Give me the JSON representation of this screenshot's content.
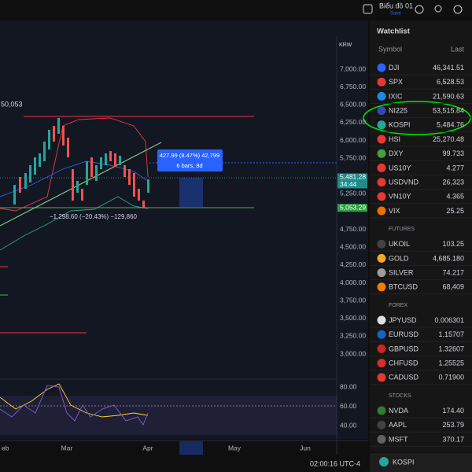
{
  "toolbar": {
    "layout_name": "Biểu đồ 01",
    "save": "Save"
  },
  "chart": {
    "currency": "KRW",
    "price_labels": [
      "7,000.00",
      "6,750.00",
      "6,500.00",
      "6,250.00",
      "6,000.00",
      "5,750.00",
      "5,250.00",
      "4,750.00",
      "4,500.00",
      "4,250.00",
      "4,000.00",
      "3,750.00",
      "3,500.00",
      "3,250.00",
      "3,000.00"
    ],
    "price_tags": [
      {
        "label": "5,481.28",
        "color": "#1e8c8c"
      },
      {
        "label": "5,053.29",
        "color": "#2f9e44"
      }
    ],
    "countdown": "34:44",
    "indicator_labels": [
      "80.00",
      "60.00",
      "40.00"
    ],
    "time_labels": [
      "eb",
      "Mar",
      "Apr",
      "May",
      "Jun"
    ],
    "left_label": "50,053",
    "measure_up": {
      "line1": "427.99 (8.47%) 42,799",
      "line2": "6 bars, 8d"
    },
    "measure_down": "−1,298.60 (−20.43%) −129,860",
    "clock": "02:00:16 UTC-4"
  },
  "watchlist": {
    "title": "Watchlist",
    "col_symbol": "Symbol",
    "col_last": "Last",
    "rows": [
      {
        "symbol": "DJI",
        "last": "46,341.51",
        "color": "#2962ff"
      },
      {
        "symbol": "SPX",
        "last": "6,528.53",
        "color": "#e53935"
      },
      {
        "symbol": "IXIC",
        "last": "21,590.63",
        "color": "#1e88e5"
      },
      {
        "symbol": "NI225",
        "last": "53,515.84",
        "color": "#3949ab"
      },
      {
        "symbol": "KOSPI",
        "last": "5,484.76",
        "color": "#26a69a"
      },
      {
        "symbol": "HSI",
        "last": "25,270.48",
        "color": "#e53935"
      },
      {
        "symbol": "DXY",
        "last": "99.733",
        "color": "#43a047"
      },
      {
        "symbol": "US10Y",
        "last": "4.277",
        "color": "#e53935"
      },
      {
        "symbol": "USDVND",
        "last": "26,323",
        "color": "#e53935"
      },
      {
        "symbol": "VN10Y",
        "last": "4.365",
        "color": "#e53935"
      },
      {
        "symbol": "VIX",
        "last": "25.25",
        "color": "#ef6c00"
      }
    ],
    "sections": [
      {
        "name": "FUTURES",
        "rows": [
          {
            "symbol": "UKOIL",
            "last": "103.25",
            "color": "#424242"
          },
          {
            "symbol": "GOLD",
            "last": "4,685.180",
            "color": "#f9a825"
          },
          {
            "symbol": "SILVER",
            "last": "74.217",
            "color": "#9e9e9e"
          },
          {
            "symbol": "BTCUSD",
            "last": "68,409",
            "color": "#f57c00"
          }
        ]
      },
      {
        "name": "FOREX",
        "rows": [
          {
            "symbol": "JPYUSD",
            "last": "0.006301",
            "color": "#e0e0e0"
          },
          {
            "symbol": "EURUSD",
            "last": "1.15707",
            "color": "#1565c0"
          },
          {
            "symbol": "GBPUSD",
            "last": "1.32607",
            "color": "#c62828"
          },
          {
            "symbol": "CHFUSD",
            "last": "1.25525",
            "color": "#d32f2f"
          },
          {
            "symbol": "CADUSD",
            "last": "0.71900",
            "color": "#e53935"
          }
        ]
      },
      {
        "name": "STOCKS",
        "rows": [
          {
            "symbol": "NVDA",
            "last": "174.40",
            "color": "#2e7d32"
          },
          {
            "symbol": "AAPL",
            "last": "253.79",
            "color": "#424242"
          },
          {
            "symbol": "MSFT",
            "last": "370.17",
            "color": "#616161"
          }
        ]
      }
    ],
    "footer_symbol": "KOSPI"
  }
}
